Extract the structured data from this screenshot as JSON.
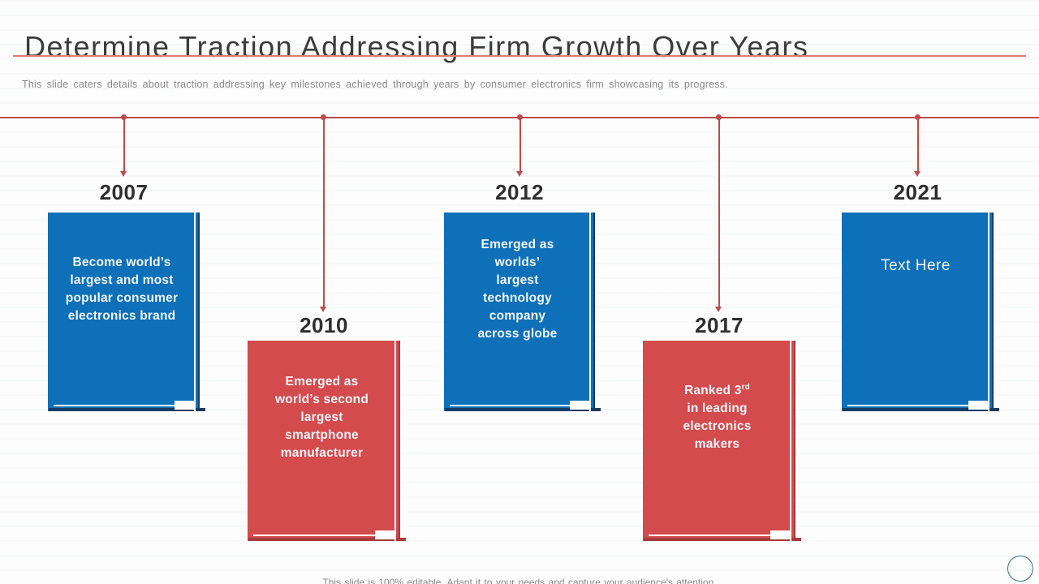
{
  "slide": {
    "title": "Determine Traction Addressing Firm Growth Over Years",
    "subtitle": "This slide caters details about traction addressing key milestones achieved through years by consumer electronics firm showcasing its progress.",
    "footer": "This slide is 100% editable. Adapt it to your needs and capture your audience's attention."
  },
  "colors": {
    "blue": "#0D70B8",
    "blue-dark": "#1A3C61",
    "red": "#D34B4D",
    "red-dark": "#A73B3D",
    "line": "#BE4B4B",
    "title": "#3C3C3C",
    "year": "#2F2F2F",
    "muted": "#8A8A8A",
    "rule": "#DD7C72",
    "circle": "#3E6F8E"
  },
  "timeline": {
    "milestones": [
      {
        "year": "2007",
        "color": "blue",
        "lines": [
          "Become world’s",
          "largest and most",
          "popular consumer",
          "electronics brand"
        ]
      },
      {
        "year": "2010",
        "color": "red",
        "lines": [
          "Emerged as",
          "world’s second",
          "largest",
          "smartphone",
          "manufacturer"
        ]
      },
      {
        "year": "2012",
        "color": "blue",
        "lines": [
          "Emerged as",
          "worlds’",
          "largest",
          "technology",
          "company",
          "across globe"
        ]
      },
      {
        "year": "2017",
        "color": "red",
        "lines": [
          "Ranked 3",
          "in leading",
          "electronics",
          "makers"
        ],
        "sup": "rd"
      },
      {
        "year": "2021",
        "color": "blue",
        "lines": [
          "Text Here"
        ]
      }
    ]
  }
}
